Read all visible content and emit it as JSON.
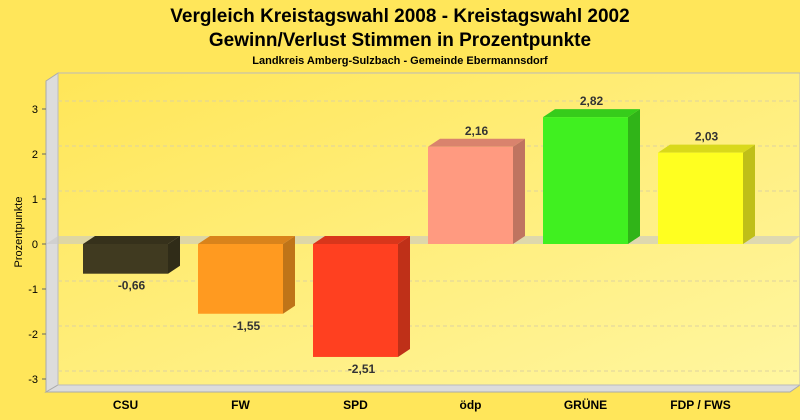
{
  "chart_data": {
    "type": "bar",
    "title": "Vergleich Kreistagswahl 2008 - Kreistagswahl 2002",
    "subtitle": "Gewinn/Verlust Stimmen in Prozentpunkte",
    "subtitle2": "Landkreis Amberg-Sulzbach - Gemeinde Ebermannsdorf",
    "xlabel": "",
    "ylabel": "Prozentpunkte",
    "ylim": [
      -3.3,
      3.6
    ],
    "yticks": [
      "3",
      "2",
      "1",
      "0",
      "-1",
      "-2",
      "-3"
    ],
    "grid": true,
    "categories": [
      "CSU",
      "FW",
      "SPD",
      "ödp",
      "GRÜNE",
      "FDP / FWS"
    ],
    "values": [
      -0.66,
      -1.55,
      -2.51,
      2.16,
      2.82,
      2.03
    ],
    "value_labels": [
      "-0,66",
      "-1,55",
      "-2,51",
      "2,16",
      "2,82",
      "2,03"
    ],
    "colors": [
      "#403a20",
      "#ff9a20",
      "#ff4020",
      "#ff9a80",
      "#40f020",
      "#ffff20"
    ]
  }
}
